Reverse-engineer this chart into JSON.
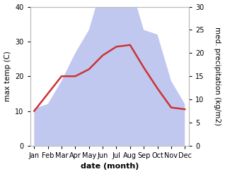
{
  "months": [
    "Jan",
    "Feb",
    "Mar",
    "Apr",
    "May",
    "Jun",
    "Jul",
    "Aug",
    "Sep",
    "Oct",
    "Nov",
    "Dec"
  ],
  "month_positions": [
    0,
    1,
    2,
    3,
    4,
    5,
    6,
    7,
    8,
    9,
    10,
    11
  ],
  "temp_max": [
    10.0,
    15.0,
    20.0,
    20.0,
    22.0,
    26.0,
    28.5,
    29.0,
    22.5,
    16.5,
    11.0,
    10.5
  ],
  "precip": [
    8.0,
    9.0,
    14.0,
    20.0,
    25.0,
    35.0,
    42.0,
    35.0,
    25.0,
    24.0,
    14.0,
    9.0
  ],
  "temp_ylim": [
    0,
    40
  ],
  "precip_ylim": [
    0,
    30
  ],
  "temp_yticks": [
    0,
    10,
    20,
    30,
    40
  ],
  "precip_yticks": [
    0,
    5,
    10,
    15,
    20,
    25,
    30
  ],
  "temp_color": "#cc3333",
  "precip_fill_color": "#c0c8f0",
  "precip_fill_alpha": 1.0,
  "xlabel": "date (month)",
  "ylabel_left": "max temp (C)",
  "ylabel_right": "med. precipitation (kg/m2)",
  "xlabel_fontsize": 8,
  "ylabel_fontsize": 7.5,
  "tick_fontsize": 7,
  "background_color": "#ffffff",
  "spine_color": "#bbbbbb"
}
